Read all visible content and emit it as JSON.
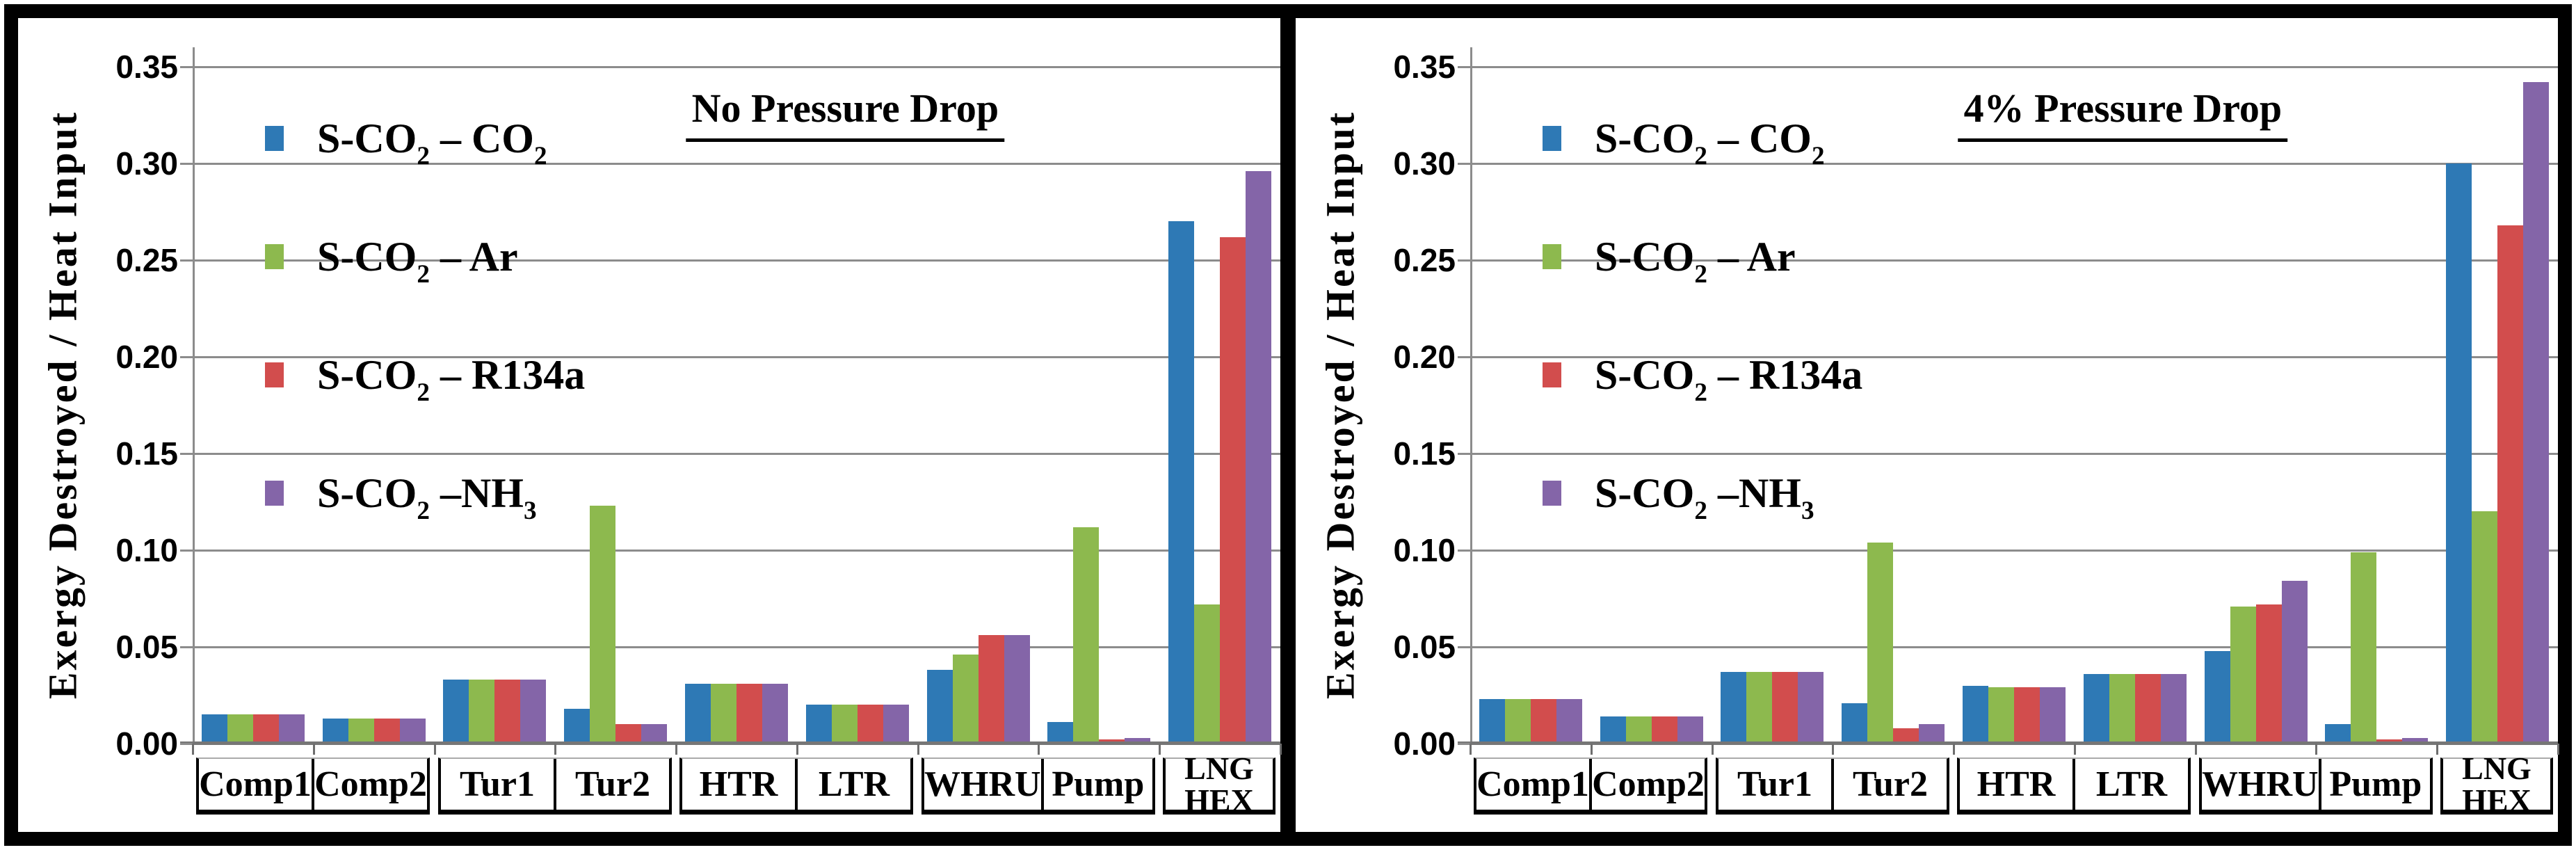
{
  "figure": {
    "background": "#ffffff",
    "frame_color": "#000000",
    "gridline_color": "#8c8c8c",
    "y_ticks": [
      "0.00",
      "0.05",
      "0.10",
      "0.15",
      "0.20",
      "0.25",
      "0.30",
      "0.35"
    ],
    "x_label_groups": [
      [
        "Comp1",
        "Comp2"
      ],
      [
        "Tur1",
        "Tur2"
      ],
      [
        "HTR",
        "LTR"
      ],
      [
        "WHRU",
        "Pump"
      ],
      [
        "LNG\nHEX"
      ]
    ]
  },
  "chart_data": [
    {
      "type": "bar",
      "title": "No Pressure Drop",
      "ylabel": "Exergy Destroyed / Heat Input",
      "xlabel": "",
      "ylim": [
        0,
        0.35
      ],
      "ytick_step": 0.05,
      "grid": true,
      "legend_position": "top-left",
      "categories": [
        "Comp1",
        "Comp2",
        "Tur1",
        "Tur2",
        "HTR",
        "LTR",
        "WHRU",
        "Pump",
        "LNG HEX"
      ],
      "series": [
        {
          "name": "S-CO₂ – CO₂",
          "color": "#2E79B5",
          "values": [
            0.015,
            0.013,
            0.033,
            0.018,
            0.031,
            0.02,
            0.038,
            0.011,
            0.27
          ]
        },
        {
          "name": "S-CO₂ – Ar",
          "color": "#8DB94E",
          "values": [
            0.015,
            0.013,
            0.033,
            0.123,
            0.031,
            0.02,
            0.046,
            0.112,
            0.072
          ]
        },
        {
          "name": "S-CO₂ – R134a",
          "color": "#D24D4D",
          "values": [
            0.015,
            0.013,
            0.033,
            0.01,
            0.031,
            0.02,
            0.056,
            0.002,
            0.262
          ]
        },
        {
          "name": "S-CO₂ –NH₃",
          "color": "#8465A8",
          "values": [
            0.015,
            0.013,
            0.033,
            0.01,
            0.031,
            0.02,
            0.056,
            0.003,
            0.296
          ]
        }
      ]
    },
    {
      "type": "bar",
      "title": "4% Pressure Drop",
      "ylabel": "Exergy Destroyed / Heat Input",
      "xlabel": "",
      "ylim": [
        0,
        0.35
      ],
      "ytick_step": 0.05,
      "grid": true,
      "legend_position": "top-left",
      "categories": [
        "Comp1",
        "Comp2",
        "Tur1",
        "Tur2",
        "HTR",
        "LTR",
        "WHRU",
        "Pump",
        "LNG HEX"
      ],
      "series": [
        {
          "name": "S-CO₂ – CO₂",
          "color": "#2E79B5",
          "values": [
            0.023,
            0.014,
            0.037,
            0.021,
            0.03,
            0.036,
            0.048,
            0.01,
            0.3
          ]
        },
        {
          "name": "S-CO₂ – Ar",
          "color": "#8DB94E",
          "values": [
            0.023,
            0.014,
            0.037,
            0.104,
            0.029,
            0.036,
            0.071,
            0.099,
            0.12
          ]
        },
        {
          "name": "S-CO₂ – R134a",
          "color": "#D24D4D",
          "values": [
            0.023,
            0.014,
            0.037,
            0.008,
            0.029,
            0.036,
            0.072,
            0.002,
            0.268
          ]
        },
        {
          "name": "S-CO₂ –NH₃",
          "color": "#8465A8",
          "values": [
            0.023,
            0.014,
            0.037,
            0.01,
            0.029,
            0.036,
            0.084,
            0.003,
            0.342
          ]
        }
      ]
    }
  ]
}
